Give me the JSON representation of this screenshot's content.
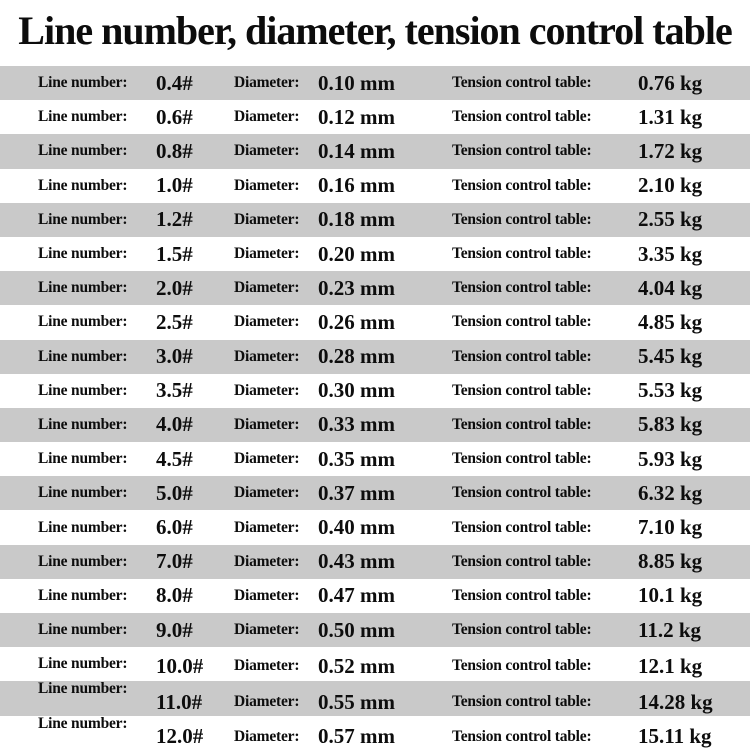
{
  "title": "Line number, diameter, tension control table",
  "table": {
    "label_line": "Line number:",
    "label_diameter": "Diameter:",
    "label_tension": "Tension control table:",
    "rows": [
      {
        "line": "0.4#",
        "diameter": "0.10 mm",
        "tension": "0.76 kg"
      },
      {
        "line": "0.6#",
        "diameter": "0.12 mm",
        "tension": "1.31 kg"
      },
      {
        "line": "0.8#",
        "diameter": "0.14 mm",
        "tension": "1.72 kg"
      },
      {
        "line": "1.0#",
        "diameter": "0.16 mm",
        "tension": "2.10 kg"
      },
      {
        "line": "1.2#",
        "diameter": "0.18 mm",
        "tension": "2.55 kg"
      },
      {
        "line": "1.5#",
        "diameter": "0.20 mm",
        "tension": "3.35 kg"
      },
      {
        "line": "2.0#",
        "diameter": "0.23 mm",
        "tension": "4.04 kg"
      },
      {
        "line": "2.5#",
        "diameter": "0.26 mm",
        "tension": "4.85 kg"
      },
      {
        "line": "3.0#",
        "diameter": "0.28 mm",
        "tension": "5.45 kg"
      },
      {
        "line": "3.5#",
        "diameter": "0.30 mm",
        "tension": "5.53 kg"
      },
      {
        "line": "4.0#",
        "diameter": "0.33 mm",
        "tension": "5.83 kg"
      },
      {
        "line": "4.5#",
        "diameter": "0.35 mm",
        "tension": "5.93 kg"
      },
      {
        "line": "5.0#",
        "diameter": "0.37 mm",
        "tension": "6.32 kg"
      },
      {
        "line": "6.0#",
        "diameter": "0.40 mm",
        "tension": "7.10 kg"
      },
      {
        "line": "7.0#",
        "diameter": "0.43 mm",
        "tension": "8.85 kg"
      },
      {
        "line": "8.0#",
        "diameter": "0.47 mm",
        "tension": "10.1 kg"
      },
      {
        "line": "9.0#",
        "diameter": "0.50 mm",
        "tension": "11.2 kg"
      },
      {
        "line": "10.0#",
        "diameter": "0.52 mm",
        "tension": "12.1 kg"
      },
      {
        "line": "11.0#",
        "diameter": "0.55 mm",
        "tension": "14.28 kg"
      },
      {
        "line": "12.0#",
        "diameter": "0.57 mm",
        "tension": "15.11 kg"
      }
    ]
  },
  "colors": {
    "row_stripe": "#c9c9c9",
    "row_base": "#ffffff",
    "text": "#0d0d0d"
  }
}
